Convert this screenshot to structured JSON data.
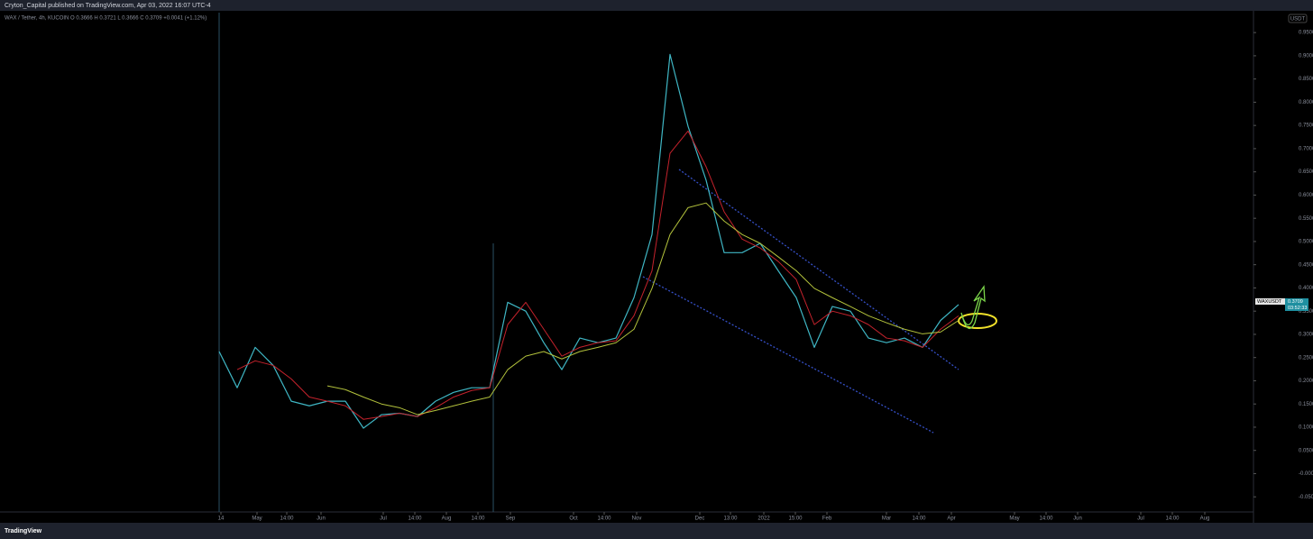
{
  "header": "Cryton_Capital published on TradingView.com, Apr 03, 2022 16:07 UTC-4",
  "footer": "TradingView",
  "chart_data": {
    "type": "line",
    "legend": "WAX / Tether, 4h, KUCOIN  O 0.3666  H 0.3721  L 0.3666  C 0.3709  +0.0041 (+1.12%)",
    "currency": "USDT",
    "price_label": {
      "symbol": "WAXUSDT",
      "price": "0.3709",
      "countdown": "03:52:33"
    },
    "xlim": [
      0,
      57.35
    ],
    "xticks": [
      {
        "value": 0.1,
        "label": "14"
      },
      {
        "value": 2.1,
        "label": "May"
      },
      {
        "value": 3.75,
        "label": "14:00"
      },
      {
        "value": 5.65,
        "label": "Jun"
      },
      {
        "value": 9.1,
        "label": "Jul"
      },
      {
        "value": 10.85,
        "label": "14:00"
      },
      {
        "value": 12.6,
        "label": "Aug"
      },
      {
        "value": 14.35,
        "label": "14:00"
      },
      {
        "value": 16.15,
        "label": "Sep"
      },
      {
        "value": 19.65,
        "label": "Oct"
      },
      {
        "value": 21.35,
        "label": "14:00"
      },
      {
        "value": 23.15,
        "label": "Nov"
      },
      {
        "value": 26.65,
        "label": "Dec"
      },
      {
        "value": 28.35,
        "label": "13:00"
      },
      {
        "value": 30.2,
        "label": "2022"
      },
      {
        "value": 31.95,
        "label": "15:00"
      },
      {
        "value": 33.7,
        "label": "Feb"
      },
      {
        "value": 37,
        "label": "Mar"
      },
      {
        "value": 38.8,
        "label": "14:00"
      },
      {
        "value": 40.6,
        "label": "Apr"
      },
      {
        "value": 44.1,
        "label": "May"
      },
      {
        "value": 45.85,
        "label": "14:00"
      },
      {
        "value": 47.6,
        "label": "Jun"
      },
      {
        "value": 51.1,
        "label": "Jul"
      },
      {
        "value": 52.85,
        "label": "14:00"
      },
      {
        "value": 54.65,
        "label": "Aug"
      }
    ],
    "ylim": [
      -0.102,
      0.993
    ],
    "yticks": [
      {
        "value": 0.95,
        "label": "0.9500"
      },
      {
        "value": 0.9,
        "label": "0.9000"
      },
      {
        "value": 0.85,
        "label": "0.8500"
      },
      {
        "value": 0.8,
        "label": "0.8000"
      },
      {
        "value": 0.75,
        "label": "0.7500"
      },
      {
        "value": 0.7,
        "label": "0.7000"
      },
      {
        "value": 0.65,
        "label": "0.6500"
      },
      {
        "value": 0.6,
        "label": "0.6000"
      },
      {
        "value": 0.55,
        "label": "0.5500"
      },
      {
        "value": 0.5,
        "label": "0.5000"
      },
      {
        "value": 0.45,
        "label": "0.4500"
      },
      {
        "value": 0.4,
        "label": "0.4000"
      },
      {
        "value": 0.35,
        "label": "0.3500"
      },
      {
        "value": 0.3,
        "label": "0.3000"
      },
      {
        "value": 0.25,
        "label": "0.2500"
      },
      {
        "value": 0.2,
        "label": "0.2000"
      },
      {
        "value": 0.15,
        "label": "0.1500"
      },
      {
        "value": 0.1,
        "label": "0.1000"
      },
      {
        "value": 0.05,
        "label": "0.0500"
      },
      {
        "value": 0,
        "label": "-0.0000"
      },
      {
        "value": -0.05,
        "label": "-0.0500"
      }
    ],
    "series": [
      {
        "color": "#3fb6c4",
        "values": [
          0.263,
          0.185,
          0.272,
          0.233,
          0.156,
          0.146,
          0.156,
          0.156,
          0.098,
          0.127,
          0.13,
          0.123,
          0.156,
          0.175,
          0.185,
          0.185,
          0.369,
          0.35,
          0.282,
          0.224,
          0.292,
          0.282,
          0.292,
          0.379,
          0.515,
          0.903,
          0.748,
          0.632,
          0.476,
          0.476,
          0.496,
          0.437,
          0.379,
          0.272,
          0.36,
          0.35,
          0.292,
          0.282,
          0.292,
          0.272,
          0.33,
          0.364
        ]
      },
      {
        "color": "#c4222c",
        "values": [
          null,
          0.224,
          0.243,
          0.233,
          0.204,
          0.165,
          0.156,
          0.146,
          0.117,
          0.123,
          0.13,
          0.123,
          0.142,
          0.165,
          0.179,
          0.185,
          0.321,
          0.369,
          0.311,
          0.253,
          0.272,
          0.282,
          0.286,
          0.34,
          0.437,
          0.69,
          0.738,
          0.661,
          0.564,
          0.505,
          0.486,
          0.457,
          0.418,
          0.321,
          0.35,
          0.34,
          0.321,
          0.292,
          0.286,
          0.272,
          0.311,
          0.34
        ]
      },
      {
        "color": "#b3c23c",
        "values": [
          null,
          null,
          null,
          null,
          null,
          null,
          0.189,
          0.181,
          0.165,
          0.15,
          0.142,
          0.127,
          0.136,
          0.146,
          0.156,
          0.165,
          0.224,
          0.253,
          0.263,
          0.247,
          0.263,
          0.272,
          0.282,
          0.311,
          0.399,
          0.515,
          0.573,
          0.583,
          0.544,
          0.515,
          0.496,
          0.467,
          0.437,
          0.399,
          0.379,
          0.36,
          0.34,
          0.325,
          0.311,
          0.301,
          0.305,
          0.33
        ]
      }
    ]
  }
}
